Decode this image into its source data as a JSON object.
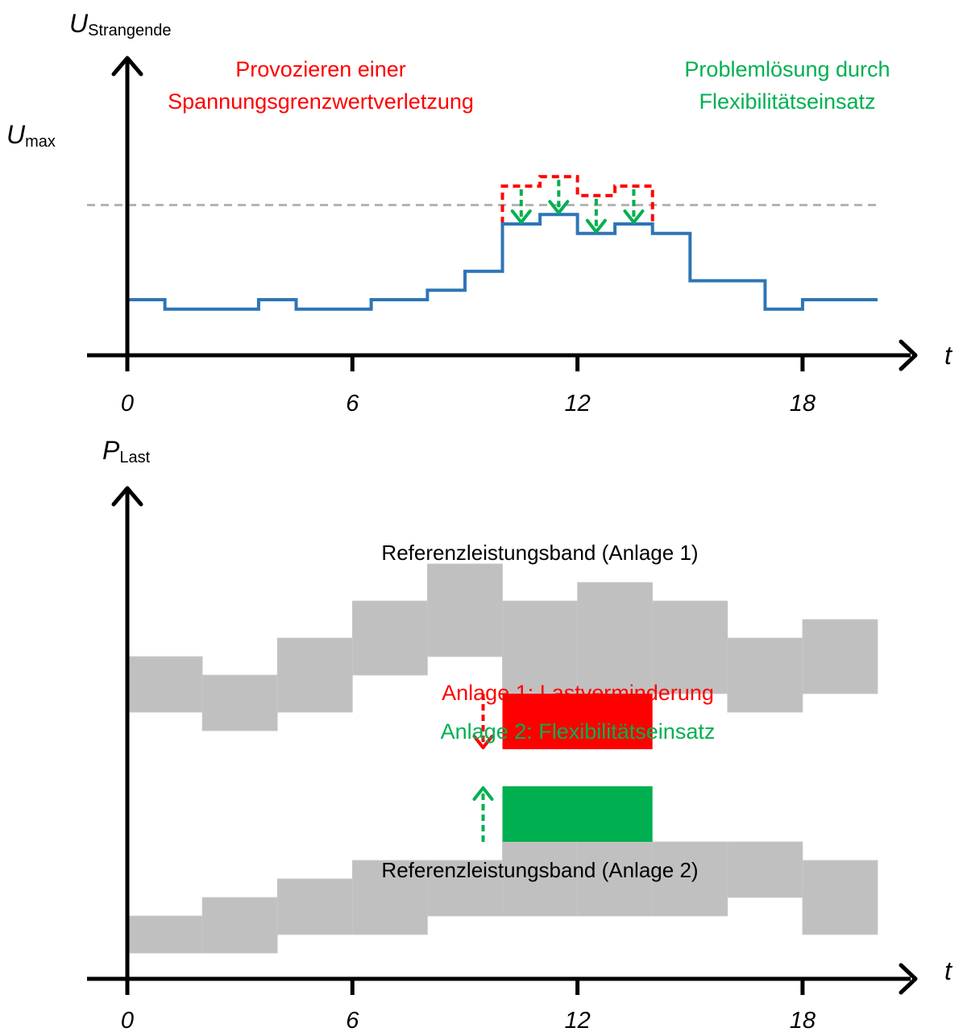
{
  "chart_data": [
    {
      "type": "line",
      "title": "",
      "ylabel": {
        "main": "U",
        "sub": "Strangende"
      },
      "xlabel": "t",
      "x_ticks": [
        0,
        6,
        12,
        18
      ],
      "xlim": [
        0,
        20
      ],
      "threshold": {
        "label_main": "U",
        "label_sub": "max",
        "value": 7.0
      },
      "series": [
        {
          "role": "baseline-voltage",
          "color": "#2e75b6",
          "steps": [
            [
              0,
              1,
              2.0
            ],
            [
              1,
              3.5,
              1.5
            ],
            [
              3.5,
              4.5,
              2.0
            ],
            [
              4.5,
              6.5,
              1.5
            ],
            [
              6.5,
              8,
              2.0
            ],
            [
              8,
              9,
              2.5
            ],
            [
              9,
              10,
              3.5
            ],
            [
              10,
              11,
              4.5
            ],
            [
              11,
              12,
              6.0
            ],
            [
              12,
              13,
              5.5
            ],
            [
              13,
              14,
              5.0
            ],
            [
              14,
              15,
              5.5
            ],
            [
              15,
              17,
              3.0
            ],
            [
              17,
              18,
              1.5
            ],
            [
              18,
              20,
              2.0
            ]
          ]
        },
        {
          "role": "after-flexibility",
          "color": "#2e75b6",
          "steps": [
            [
              10,
              11,
              6.0
            ],
            [
              11,
              12,
              6.5
            ],
            [
              12,
              13,
              5.5
            ],
            [
              13,
              14,
              6.0
            ]
          ]
        },
        {
          "role": "provoked-violation",
          "color": "#ff0000",
          "dashed": true,
          "steps": [
            [
              10,
              11,
              8.0
            ],
            [
              11,
              12,
              8.5
            ],
            [
              12,
              13,
              7.5
            ],
            [
              13,
              14,
              8.0
            ]
          ]
        }
      ],
      "flex_arrows": [
        {
          "x": 10.5,
          "from": 8.0,
          "to": 6.0
        },
        {
          "x": 11.5,
          "from": 8.5,
          "to": 6.5
        },
        {
          "x": 12.5,
          "from": 7.5,
          "to": 5.5
        },
        {
          "x": 13.5,
          "from": 8.0,
          "to": 6.0
        }
      ],
      "annotations": [
        {
          "lines": [
            "Provozieren einer",
            "Spannungsgrenzwertverletzung"
          ],
          "color": "#ff0000"
        },
        {
          "lines": [
            "Problemlösung durch",
            "Flexibilitätseinsatz"
          ],
          "color": "#00b050"
        }
      ]
    },
    {
      "type": "area",
      "title": "",
      "ylabel": {
        "main": "P",
        "sub": "Last"
      },
      "xlabel": "t",
      "x_ticks": [
        0,
        6,
        12,
        18
      ],
      "xlim": [
        0,
        20
      ],
      "bands": [
        {
          "label": "Referenzleistungsband (Anlage 1)",
          "color": "#c0c0c0",
          "blocks": [
            [
              0,
              2,
              7.0,
              8.5
            ],
            [
              2,
              4,
              6.5,
              8.0
            ],
            [
              4,
              6,
              7.0,
              9.0
            ],
            [
              6,
              8,
              8.0,
              10.0
            ],
            [
              8,
              10,
              8.5,
              11.0
            ],
            [
              10,
              12,
              7.5,
              10.0
            ],
            [
              12,
              14,
              7.5,
              10.5
            ],
            [
              14,
              16,
              7.5,
              10.0
            ],
            [
              16,
              18,
              7.0,
              9.0
            ],
            [
              18,
              20,
              7.5,
              9.5
            ]
          ]
        },
        {
          "label": "Referenzleistungsband (Anlage 2)",
          "color": "#c0c0c0",
          "blocks": [
            [
              0,
              2,
              0.5,
              1.5
            ],
            [
              2,
              4,
              0.5,
              2.0
            ],
            [
              4,
              6,
              1.0,
              2.5
            ],
            [
              6,
              8,
              1.0,
              3.0
            ],
            [
              8,
              10,
              1.5,
              3.0
            ],
            [
              10,
              12,
              1.5,
              3.5
            ],
            [
              12,
              14,
              1.5,
              3.5
            ],
            [
              14,
              16,
              1.5,
              3.5
            ],
            [
              16,
              18,
              2.0,
              3.5
            ],
            [
              18,
              20,
              1.0,
              3.0
            ]
          ]
        }
      ],
      "adjustments": [
        {
          "label": "Anlage 1: Lastverminderung",
          "color": "#ff0000",
          "x0": 10,
          "x1": 14,
          "y0": 6.0,
          "y1": 7.5,
          "arrow_dir": "down"
        },
        {
          "label": "Anlage 2: Flexibilitätseinsatz",
          "color": "#00b050",
          "x0": 10,
          "x1": 14,
          "y0": 3.5,
          "y1": 5.0,
          "arrow_dir": "up"
        }
      ]
    }
  ]
}
